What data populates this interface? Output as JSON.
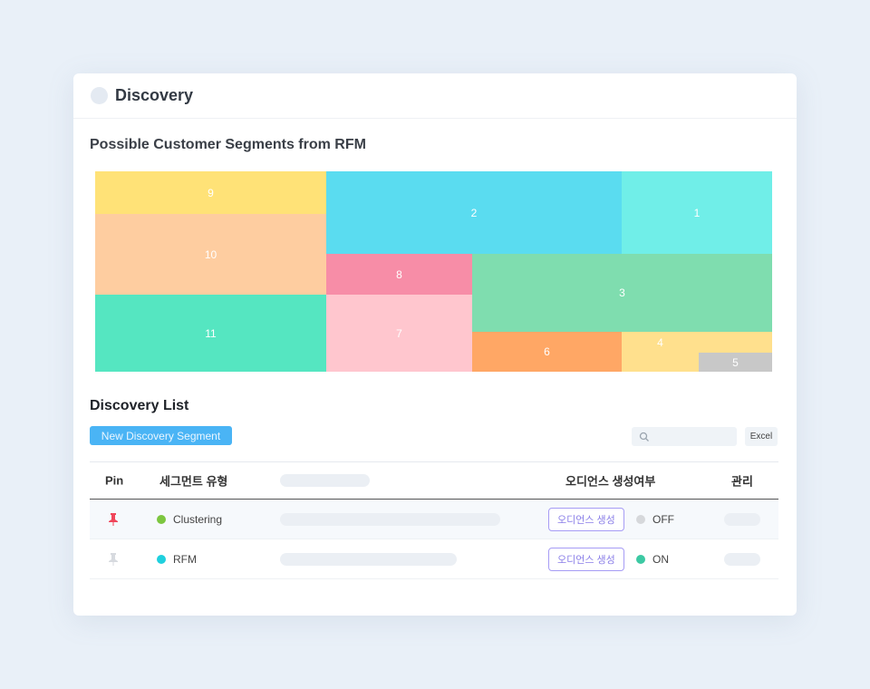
{
  "header": {
    "title": "Discovery"
  },
  "chart_title": "Possible Customer Segments from RFM",
  "chart_data": {
    "type": "treemap",
    "title": "Possible Customer Segments from RFM",
    "segments": [
      {
        "label": "9",
        "value": 7.3,
        "color": "#FFE277"
      },
      {
        "label": "10",
        "value": 13.7,
        "color": "#FECDA0"
      },
      {
        "label": "11",
        "value": 13.1,
        "color": "#55E6C1"
      },
      {
        "label": "2",
        "value": 18.0,
        "color": "#5ADCF0"
      },
      {
        "label": "1",
        "value": 9.2,
        "color": "#70EEE8"
      },
      {
        "label": "8",
        "value": 4.4,
        "color": "#F78DA7"
      },
      {
        "label": "7",
        "value": 8.3,
        "color": "#FFC6CE"
      },
      {
        "label": "3",
        "value": 17.2,
        "color": "#7FDDAF"
      },
      {
        "label": "6",
        "value": 4.4,
        "color": "#FFA765"
      },
      {
        "label": "4",
        "value": 3.4,
        "color": "#FFE08D"
      },
      {
        "label": "5",
        "value": 1.0,
        "color": "#C8C8C8"
      }
    ]
  },
  "list": {
    "title": "Discovery List",
    "new_button": "New Discovery Segment",
    "excel": "Excel",
    "columns": {
      "pin": "Pin",
      "type": "세그먼트 유형",
      "audience": "오디언스 생성여부",
      "manage": "관리"
    },
    "rows": [
      {
        "pinned": true,
        "type": "Clustering",
        "type_color": "#7cc63f",
        "audience_button": "오디언스 생성",
        "status": "OFF",
        "status_color": "#d6d8db"
      },
      {
        "pinned": false,
        "type": "RFM",
        "type_color": "#1fd0de",
        "audience_button": "오디언스 생성",
        "status": "ON",
        "status_color": "#3cc9a3"
      }
    ]
  }
}
